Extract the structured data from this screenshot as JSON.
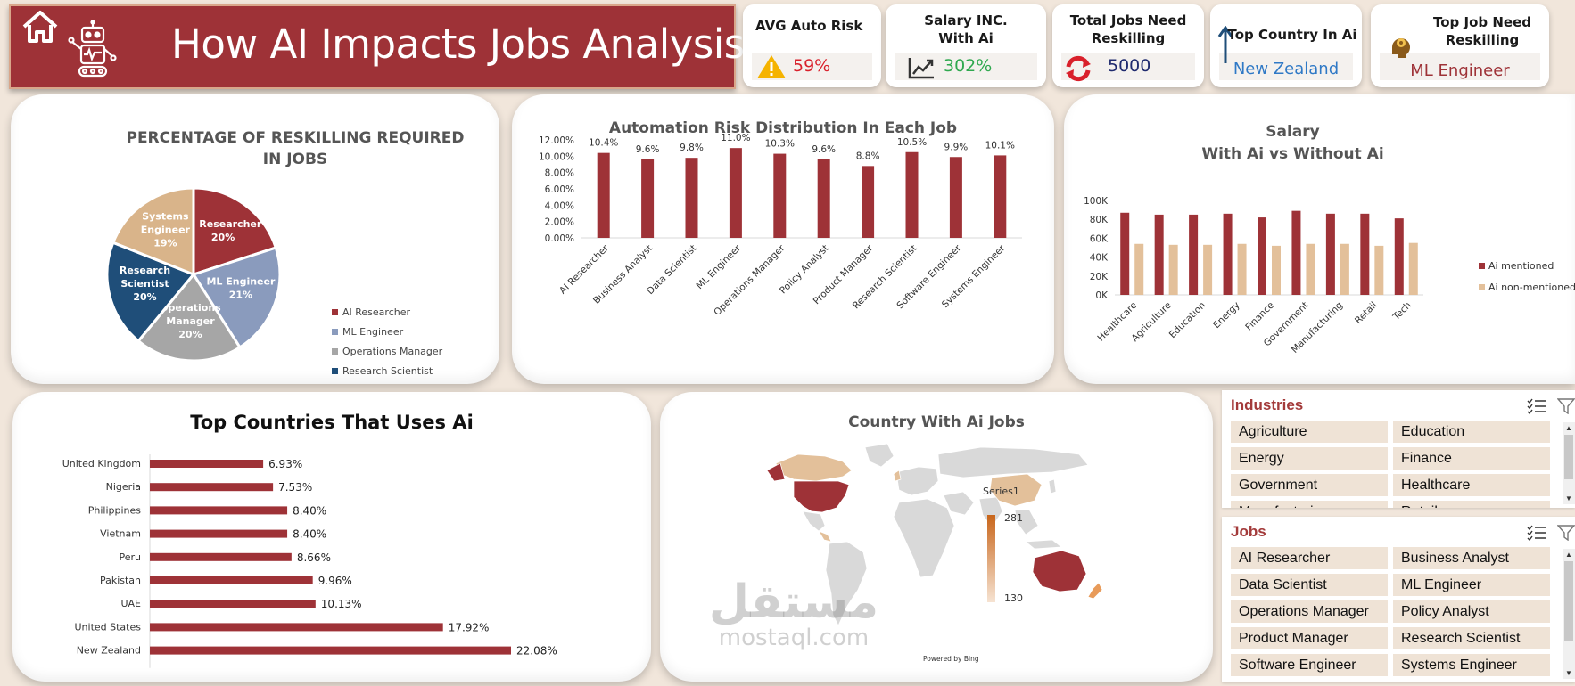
{
  "header": {
    "title": "How AI Impacts Jobs Analysis",
    "home_icon": "home-icon",
    "robot_icon": "robot-icon",
    "bg_color": "#9e3237"
  },
  "kpis": [
    {
      "title": "AVG Auto Risk",
      "value": "59%",
      "icon": "warning-icon",
      "value_color": "#d9202b"
    },
    {
      "title": "Salary INC. With Ai",
      "value": "302%",
      "icon": "trend-up-icon",
      "value_color": "#2fa84f"
    },
    {
      "title": "Total Jobs Need Reskilling",
      "value": "5000",
      "icon": "refresh-icon",
      "value_color": "#1f2a6e"
    },
    {
      "title": "Top Country In Ai",
      "value": "New Zealand",
      "icon": "arrow-up-icon",
      "value_color": "#2f79c6"
    },
    {
      "title": "Top Job Need Reskilling",
      "value": "ML Engineer",
      "icon": "brain-gear-icon",
      "value_color": "#9e3237"
    }
  ],
  "charts": {
    "pie": {
      "title_line1": "PERCENTAGE OF RESKILLING REQUIRED",
      "title_line2": "IN JOBS",
      "chart_data": {
        "type": "pie",
        "labels": [
          "AI Researcher",
          "ML Engineer",
          "Operations Manager",
          "Research Scientist",
          "Systems Engineer"
        ],
        "values": [
          20,
          21,
          20,
          20,
          19
        ],
        "slice_labels": [
          [
            "AI Researcher",
            "20%"
          ],
          [
            "ML Engineer",
            "21%"
          ],
          [
            "Operations",
            "Manager",
            "20%"
          ],
          [
            "Research",
            "Scientist",
            "20%"
          ],
          [
            "Systems",
            "Engineer",
            "19%"
          ]
        ],
        "colors": [
          "#9e3237",
          "#8a9bbd",
          "#a6a6a6",
          "#1f4e79",
          "#d9b48a"
        ],
        "legend": "right"
      }
    },
    "automation": {
      "title": "Automation Risk Distribution In Each Job",
      "chart_data": {
        "type": "bar",
        "categories": [
          "AI Researcher",
          "Business Analyst",
          "Data Scientist",
          "ML Engineer",
          "Operations Manager",
          "Policy Analyst",
          "Product Manager",
          "Research Scientist",
          "Software Engineer",
          "Systems Engineer"
        ],
        "values": [
          10.4,
          9.6,
          9.8,
          11.0,
          10.3,
          9.6,
          8.8,
          10.5,
          9.9,
          10.1
        ],
        "data_labels": [
          "10.4%",
          "9.6%",
          "9.8%",
          "11.0%",
          "10.3%",
          "9.6%",
          "8.8%",
          "10.5%",
          "9.9%",
          "10.1%"
        ],
        "yticks": [
          "0.00%",
          "2.00%",
          "4.00%",
          "6.00%",
          "8.00%",
          "10.00%",
          "12.00%"
        ],
        "ylim": [
          0,
          12
        ],
        "color": "#9e3237"
      }
    },
    "salary": {
      "title_line1": "Salary",
      "title_line2": "With Ai vs Without Ai",
      "chart_data": {
        "type": "bar",
        "categories": [
          "Healthcare",
          "Agriculture",
          "Education",
          "Energy",
          "Finance",
          "Government",
          "Manufacturing",
          "Retail",
          "Tech"
        ],
        "series": [
          {
            "name": "Ai mentioned",
            "values": [
              87,
              85,
              85,
              86,
              82,
              89,
              86,
              86,
              81
            ],
            "color": "#9e3237"
          },
          {
            "name": "Ai non-mentioned",
            "values": [
              54,
              53,
              53,
              54,
              52,
              54,
              54,
              52,
              55
            ],
            "color": "#e3c09a"
          }
        ],
        "yticks": [
          "0K",
          "20K",
          "40K",
          "60K",
          "80K",
          "100K"
        ],
        "ylim": [
          0,
          100
        ],
        "legend": "right"
      }
    },
    "countries": {
      "title": "Top Countries That Uses Ai",
      "chart_data": {
        "type": "bar",
        "categories": [
          "United Kingdom",
          "Nigeria",
          "Philippines",
          "Vietnam",
          "Peru",
          "Pakistan",
          "UAE",
          "United States",
          "New Zealand"
        ],
        "values": [
          6.93,
          7.53,
          8.4,
          8.4,
          8.66,
          9.96,
          10.13,
          17.92,
          22.08
        ],
        "data_labels": [
          "6.93%",
          "7.53%",
          "8.40%",
          "8.40%",
          "8.66%",
          "9.96%",
          "10.13%",
          "17.92%",
          "22.08%"
        ],
        "color": "#9e3237"
      }
    },
    "map": {
      "title": "Country With Ai Jobs",
      "legend_title": "Series1",
      "legend_max": "281",
      "legend_min": "130",
      "attribution": "Powered by Bing"
    }
  },
  "slicers": {
    "industries": {
      "title": "Industries",
      "items": [
        "Agriculture",
        "Education",
        "Energy",
        "Finance",
        "Government",
        "Healthcare",
        "Manufacturing",
        "Retail"
      ]
    },
    "jobs": {
      "title": "Jobs",
      "items": [
        "AI Researcher",
        "Business Analyst",
        "Data Scientist",
        "ML Engineer",
        "Operations Manager",
        "Policy Analyst",
        "Product Manager",
        "Research Scientist",
        "Software Engineer",
        "Systems Engineer"
      ]
    }
  },
  "watermark": {
    "arabic": "مستقل",
    "latin": "mostaql.com"
  }
}
